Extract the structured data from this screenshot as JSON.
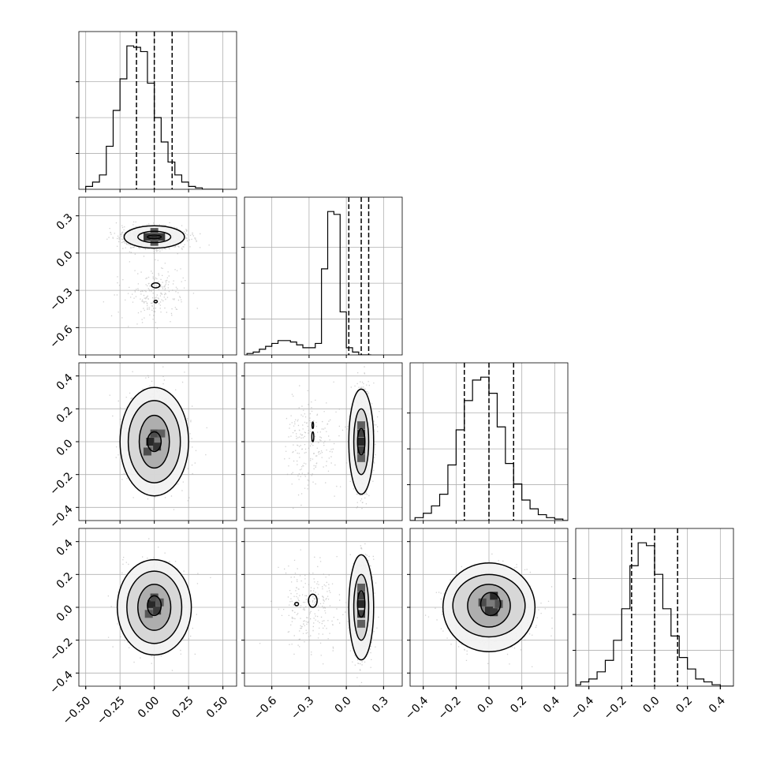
{
  "chart_data": {
    "type": "corner",
    "grid": true,
    "ndim": 4,
    "colors": {
      "hist": "#000000",
      "scatter": "#aaaaaa",
      "grid": "#b0b0b0",
      "contour": "#000000"
    },
    "ranges": [
      [
        -0.55,
        0.6
      ],
      [
        -0.82,
        0.45
      ],
      [
        -0.48,
        0.48
      ],
      [
        -0.48,
        0.48
      ]
    ],
    "ticks": [
      [
        -0.5,
        -0.25,
        0.0,
        0.25,
        0.5
      ],
      [
        -0.6,
        -0.3,
        0.0,
        0.3
      ],
      [
        -0.4,
        -0.2,
        0.0,
        0.2,
        0.4
      ],
      [
        -0.4,
        -0.2,
        0.0,
        0.2,
        0.4
      ]
    ],
    "tick_labels": [
      [
        "−0.50",
        "−0.25",
        "0.00",
        "0.25",
        "0.50"
      ],
      [
        "−0.6",
        "−0.3",
        "0.0",
        "0.3"
      ],
      [
        "−0.4",
        "−0.2",
        "0.0",
        "0.2",
        "0.4"
      ],
      [
        "−0.4",
        "−0.2",
        "0.0",
        "0.2",
        "0.4"
      ]
    ],
    "quantiles": [
      [
        -0.13,
        0.0,
        0.13
      ],
      [
        0.02,
        0.12,
        0.18
      ],
      [
        -0.15,
        0.0,
        0.15
      ],
      [
        -0.14,
        0.0,
        0.14
      ]
    ],
    "histograms": [
      {
        "edges_start": -0.5,
        "bin_width": 0.05,
        "counts": [
          2,
          5,
          10,
          30,
          55,
          77,
          100,
          99,
          96,
          74,
          50,
          33,
          19,
          10,
          5,
          2,
          1,
          0,
          0,
          0
        ]
      },
      {
        "edges_start": -0.8,
        "bin_width": 0.05,
        "counts": [
          1,
          2,
          4,
          6,
          8,
          10,
          10,
          9,
          7,
          5,
          5,
          8,
          60,
          100,
          98,
          30,
          5,
          2,
          0,
          0
        ]
      },
      {
        "edges_start": -0.5,
        "bin_width": 0.05,
        "counts": [
          0,
          2,
          5,
          10,
          18,
          38,
          62,
          82,
          96,
          98,
          87,
          64,
          39,
          25,
          14,
          8,
          4,
          2,
          1,
          0
        ]
      },
      {
        "edges_start": -0.5,
        "bin_width": 0.05,
        "counts": [
          1,
          3,
          5,
          10,
          18,
          32,
          54,
          84,
          100,
          98,
          78,
          54,
          35,
          20,
          12,
          5,
          3,
          1,
          0,
          0
        ]
      }
    ],
    "blobs": [
      {
        "i": 1,
        "j": 0,
        "modes": [
          {
            "cx": 0.0,
            "cy": 0.13,
            "sx": 0.11,
            "sy": 0.045,
            "w": 0.85
          },
          {
            "cx": 0.0,
            "cy": -0.32,
            "sx": 0.12,
            "sy": 0.11,
            "w": 0.15
          }
        ],
        "core": [
          [
            0.0,
            0.13,
            1
          ],
          [
            -0.05,
            0.13,
            0.85
          ],
          [
            0.05,
            0.13,
            0.85
          ],
          [
            0.0,
            0.17,
            0.6
          ],
          [
            0.0,
            0.09,
            0.6
          ]
        ],
        "contours": [
          {
            "cx": 0.0,
            "cy": 0.13,
            "rx": 0.05,
            "ry": 0.015
          },
          {
            "cx": 0.0,
            "cy": 0.13,
            "rx": 0.12,
            "ry": 0.045
          },
          {
            "cx": 0.0,
            "cy": 0.13,
            "rx": 0.22,
            "ry": 0.09
          },
          {
            "cx": 0.01,
            "cy": -0.26,
            "rx": 0.03,
            "ry": 0.02
          },
          {
            "cx": 0.01,
            "cy": -0.39,
            "rx": 0.012,
            "ry": 0.01
          }
        ]
      },
      {
        "i": 2,
        "j": 0,
        "modes": [
          {
            "cx": 0.0,
            "cy": 0.0,
            "sx": 0.1,
            "sy": 0.14,
            "w": 1
          }
        ],
        "core": [
          [
            -0.03,
            0.0,
            1
          ],
          [
            0.02,
            -0.03,
            0.9
          ],
          [
            0.0,
            0.05,
            0.7
          ],
          [
            -0.05,
            -0.06,
            0.7
          ],
          [
            0.05,
            0.05,
            0.55
          ]
        ],
        "contours": [
          {
            "cx": 0.0,
            "cy": 0.0,
            "rx": 0.05,
            "ry": 0.06
          },
          {
            "cx": 0.0,
            "cy": 0.0,
            "rx": 0.11,
            "ry": 0.16
          },
          {
            "cx": 0.0,
            "cy": 0.0,
            "rx": 0.19,
            "ry": 0.25
          },
          {
            "cx": 0.0,
            "cy": 0.0,
            "rx": 0.25,
            "ry": 0.33
          }
        ]
      },
      {
        "i": 2,
        "j": 1,
        "modes": [
          {
            "cx": 0.12,
            "cy": 0.0,
            "sx": 0.04,
            "sy": 0.15,
            "w": 0.85
          },
          {
            "cx": -0.3,
            "cy": 0.0,
            "sx": 0.11,
            "sy": 0.15,
            "w": 0.15
          }
        ],
        "core": [
          [
            0.12,
            0.0,
            1
          ],
          [
            0.12,
            0.05,
            0.8
          ],
          [
            0.12,
            -0.05,
            0.8
          ],
          [
            0.12,
            0.1,
            0.55
          ],
          [
            0.12,
            -0.1,
            0.55
          ]
        ],
        "contours": [
          {
            "cx": 0.12,
            "cy": 0.0,
            "rx": 0.03,
            "ry": 0.08
          },
          {
            "cx": 0.12,
            "cy": 0.0,
            "rx": 0.06,
            "ry": 0.2
          },
          {
            "cx": 0.12,
            "cy": 0.0,
            "rx": 0.1,
            "ry": 0.32
          },
          {
            "cx": -0.27,
            "cy": 0.1,
            "rx": 0.006,
            "ry": 0.02
          },
          {
            "cx": -0.27,
            "cy": 0.03,
            "rx": 0.008,
            "ry": 0.03
          }
        ]
      },
      {
        "i": 3,
        "j": 0,
        "modes": [
          {
            "cx": 0.0,
            "cy": 0.0,
            "sx": 0.11,
            "sy": 0.12,
            "w": 1
          }
        ],
        "core": [
          [
            -0.02,
            0.02,
            1
          ],
          [
            0.02,
            -0.02,
            0.85
          ],
          [
            0.0,
            0.06,
            0.7
          ],
          [
            0.04,
            0.03,
            0.6
          ],
          [
            -0.04,
            -0.04,
            0.6
          ]
        ],
        "contours": [
          {
            "cx": 0.0,
            "cy": 0.01,
            "rx": 0.05,
            "ry": 0.06
          },
          {
            "cx": 0.0,
            "cy": 0.0,
            "rx": 0.12,
            "ry": 0.14
          },
          {
            "cx": 0.0,
            "cy": 0.0,
            "rx": 0.2,
            "ry": 0.22
          },
          {
            "cx": 0.0,
            "cy": 0.0,
            "rx": 0.27,
            "ry": 0.29
          }
        ]
      },
      {
        "i": 3,
        "j": 1,
        "modes": [
          {
            "cx": 0.12,
            "cy": 0.0,
            "sx": 0.04,
            "sy": 0.14,
            "w": 0.85
          },
          {
            "cx": -0.3,
            "cy": 0.0,
            "sx": 0.12,
            "sy": 0.13,
            "w": 0.15
          }
        ],
        "core": [
          [
            0.12,
            0.02,
            1
          ],
          [
            0.12,
            0.07,
            0.8
          ],
          [
            0.12,
            -0.04,
            0.8
          ],
          [
            0.12,
            0.12,
            0.55
          ],
          [
            0.12,
            -0.1,
            0.55
          ]
        ],
        "contours": [
          {
            "cx": 0.12,
            "cy": 0.02,
            "rx": 0.03,
            "ry": 0.08
          },
          {
            "cx": 0.12,
            "cy": 0.0,
            "rx": 0.06,
            "ry": 0.2
          },
          {
            "cx": 0.12,
            "cy": 0.0,
            "rx": 0.1,
            "ry": 0.32
          },
          {
            "cx": -0.27,
            "cy": 0.04,
            "rx": 0.035,
            "ry": 0.04
          },
          {
            "cx": -0.4,
            "cy": 0.02,
            "rx": 0.015,
            "ry": 0.01
          }
        ]
      },
      {
        "i": 3,
        "j": 2,
        "modes": [
          {
            "cx": 0.0,
            "cy": 0.0,
            "sx": 0.12,
            "sy": 0.11,
            "w": 1
          }
        ],
        "core": [
          [
            0.03,
            0.07,
            1
          ],
          [
            0.0,
            -0.02,
            0.9
          ],
          [
            0.03,
            -0.03,
            0.85
          ],
          [
            -0.04,
            0.03,
            0.7
          ],
          [
            0.06,
            0.02,
            0.65
          ]
        ],
        "contours": [
          {
            "cx": 0.01,
            "cy": 0.02,
            "rx": 0.06,
            "ry": 0.07
          },
          {
            "cx": 0.0,
            "cy": 0.01,
            "rx": 0.13,
            "ry": 0.13
          },
          {
            "cx": 0.0,
            "cy": 0.01,
            "rx": 0.22,
            "ry": 0.19
          },
          {
            "cx": 0.0,
            "cy": 0.0,
            "rx": 0.28,
            "ry": 0.27
          }
        ]
      }
    ]
  }
}
